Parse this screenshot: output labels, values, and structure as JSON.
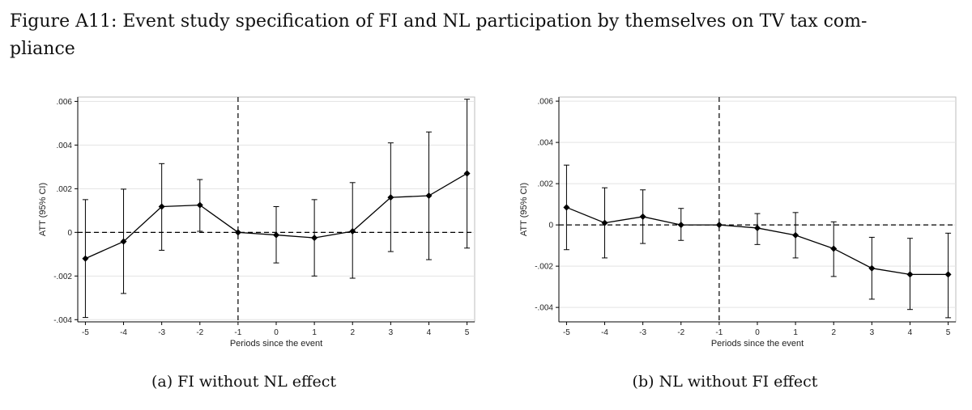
{
  "figure": {
    "title_line1": "Figure A11: Event study specification of FI and NL participation by themselves on TV tax com-",
    "title_line2": "pliance"
  },
  "colors": {
    "line": "#000000",
    "grid": "#e3e3e3",
    "frame": "#bdbdbd",
    "axis": "#000000"
  },
  "chart_data": [
    {
      "type": "line",
      "id": "a",
      "caption_label": "(a)",
      "caption_text": "FI without NL effect",
      "xlabel": "Periods since the event",
      "ylabel": "ATT (95% CI)",
      "x": [
        -5,
        -4,
        -3,
        -2,
        -1,
        0,
        1,
        2,
        3,
        4,
        5
      ],
      "x_tick_labels": [
        "-5",
        "-4",
        "-3",
        "-2",
        "-1",
        "0",
        "1",
        "2",
        "3",
        "4",
        "5"
      ],
      "y_ticks": [
        -0.004,
        -0.002,
        0,
        0.002,
        0.004,
        0.006
      ],
      "y_tick_labels": [
        "-.004",
        "-.002",
        "0",
        ".002",
        ".004",
        ".006"
      ],
      "ylim": [
        -0.0041,
        0.0062
      ],
      "event_x": -1,
      "series": [
        {
          "name": "ATT",
          "values": [
            -0.0012,
            -0.00042,
            0.00118,
            0.00125,
            0.0,
            -0.00012,
            -0.00025,
            5e-05,
            0.0016,
            0.00168,
            0.0027
          ],
          "ci_low": [
            -0.0039,
            -0.0028,
            -0.00082,
            5e-05,
            0.0,
            -0.0014,
            -0.002,
            -0.0021,
            -0.00088,
            -0.00125,
            -0.00072
          ],
          "ci_high": [
            0.0015,
            0.00198,
            0.00315,
            0.00242,
            0.0,
            0.00118,
            0.0015,
            0.00228,
            0.0041,
            0.0046,
            0.0061
          ]
        }
      ]
    },
    {
      "type": "line",
      "id": "b",
      "caption_label": "(b)",
      "caption_text": "NL without FI effect",
      "xlabel": "Periods since the event",
      "ylabel": "ATT (95% CI)",
      "x": [
        -5,
        -4,
        -3,
        -2,
        -1,
        0,
        1,
        2,
        3,
        4,
        5
      ],
      "x_tick_labels": [
        "-5",
        "-4",
        "-3",
        "-2",
        "-1",
        "0",
        "1",
        "2",
        "3",
        "4",
        "5"
      ],
      "y_ticks": [
        -0.004,
        -0.002,
        0,
        0.002,
        0.004,
        0.006
      ],
      "y_tick_labels": [
        "-.004",
        "-.002",
        "0",
        ".002",
        ".004",
        ".006"
      ],
      "ylim": [
        -0.0047,
        0.0062
      ],
      "event_x": -1,
      "series": [
        {
          "name": "ATT",
          "values": [
            0.00085,
            0.0001,
            0.0004,
            0.0,
            0.0,
            -0.00015,
            -0.0005,
            -0.00115,
            -0.0021,
            -0.0024,
            -0.0024
          ],
          "ci_low": [
            -0.0012,
            -0.0016,
            -0.0009,
            -0.00075,
            0.0,
            -0.00095,
            -0.0016,
            -0.0025,
            -0.0036,
            -0.0041,
            -0.0045
          ],
          "ci_high": [
            0.0029,
            0.0018,
            0.0017,
            0.0008,
            0.0,
            0.00055,
            0.0006,
            0.00015,
            -0.0006,
            -0.00065,
            -0.0004
          ]
        }
      ]
    }
  ]
}
